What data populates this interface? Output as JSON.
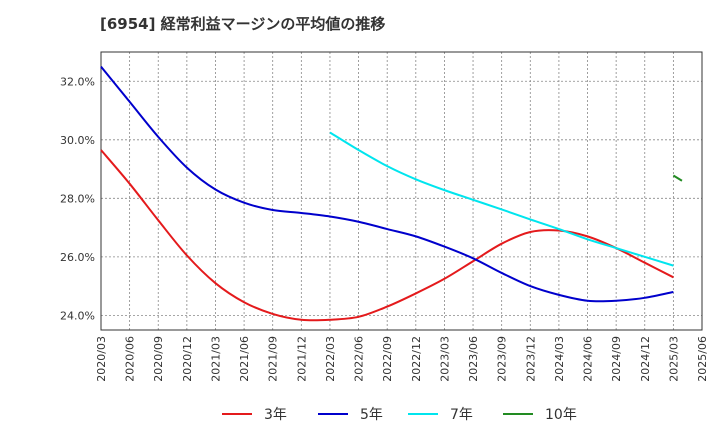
{
  "chart_data": {
    "type": "line",
    "title": "[6954]  経常利益マージンの平均値の推移",
    "xlabel": "",
    "ylabel": "",
    "x": [
      "2020/03",
      "2020/06",
      "2020/09",
      "2020/12",
      "2021/03",
      "2021/06",
      "2021/09",
      "2021/12",
      "2022/03",
      "2022/06",
      "2022/09",
      "2022/12",
      "2023/03",
      "2023/06",
      "2023/09",
      "2023/12",
      "2024/03",
      "2024/06",
      "2024/09",
      "2024/12",
      "2025/03",
      "2025/06"
    ],
    "y_ticks": [
      24.0,
      26.0,
      28.0,
      30.0,
      32.0
    ],
    "y_tick_labels": [
      "24.0%",
      "26.0%",
      "28.0%",
      "30.0%",
      "32.0%"
    ],
    "ylim": [
      23.5,
      33.0
    ],
    "grid": true,
    "legend_position": "bottom",
    "series": [
      {
        "name": "3年",
        "color": "#e41a1c",
        "values": [
          29.65,
          28.5,
          27.25,
          26.05,
          25.1,
          24.45,
          24.05,
          23.85,
          23.85,
          23.95,
          24.3,
          24.75,
          25.25,
          25.85,
          26.45,
          26.85,
          26.9,
          26.7,
          26.3,
          25.8,
          25.3,
          null
        ]
      },
      {
        "name": "5年",
        "color": "#0000cc",
        "values": [
          32.5,
          31.3,
          30.1,
          29.05,
          28.3,
          27.85,
          27.6,
          27.5,
          27.38,
          27.2,
          26.95,
          26.7,
          26.35,
          25.95,
          25.45,
          25.0,
          24.7,
          24.5,
          24.5,
          24.6,
          24.8,
          null
        ]
      },
      {
        "name": "7年",
        "color": "#00e5ee",
        "values": [
          null,
          null,
          null,
          null,
          null,
          null,
          null,
          null,
          30.25,
          29.65,
          29.1,
          28.65,
          28.28,
          27.95,
          27.62,
          27.28,
          26.95,
          26.6,
          26.3,
          26.0,
          25.7,
          null
        ]
      },
      {
        "name": "10年",
        "color": "#228b22",
        "values": [
          null,
          null,
          null,
          null,
          null,
          null,
          null,
          null,
          null,
          null,
          null,
          null,
          null,
          null,
          null,
          null,
          null,
          null,
          null,
          null,
          28.78,
          null
        ],
        "partial_end": 28.6
      }
    ]
  }
}
